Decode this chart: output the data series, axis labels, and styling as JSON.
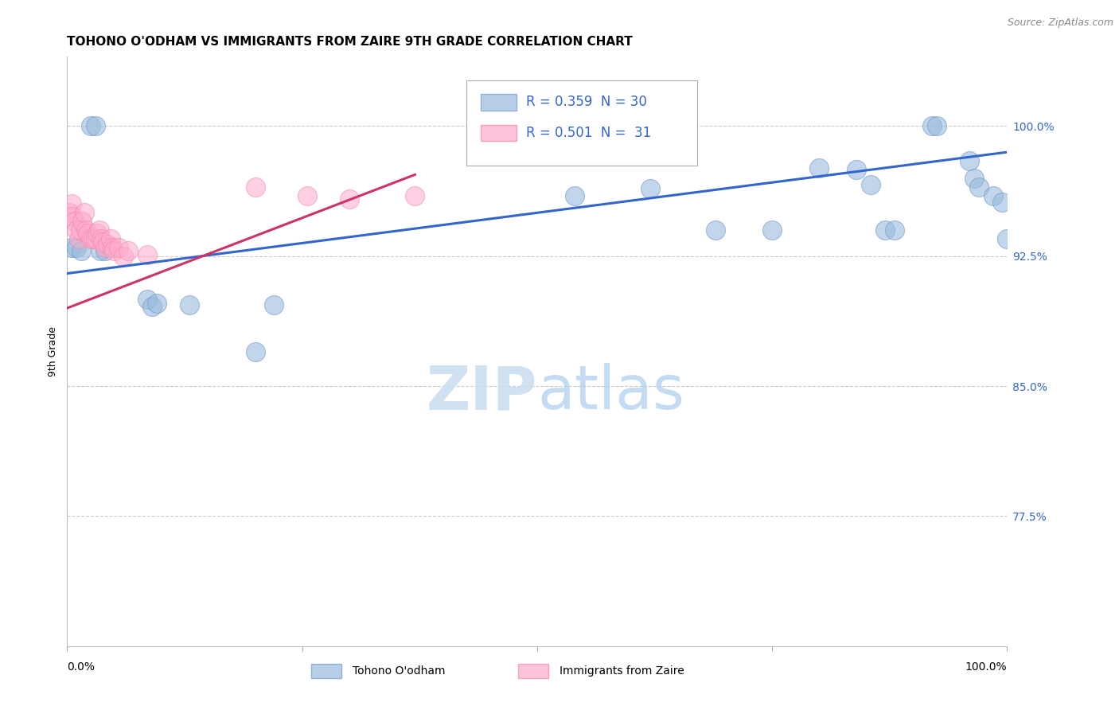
{
  "title": "TOHONO O'ODHAM VS IMMIGRANTS FROM ZAIRE 9TH GRADE CORRELATION CHART",
  "source": "Source: ZipAtlas.com",
  "ylabel": "9th Grade",
  "watermark_zip": "ZIP",
  "watermark_atlas": "atlas",
  "legend_r1": "R = 0.359",
  "legend_n1": "N = 30",
  "legend_r2": "R = 0.501",
  "legend_n2": "N =  31",
  "ytick_labels": [
    "77.5%",
    "85.0%",
    "92.5%",
    "100.0%"
  ],
  "ytick_values": [
    0.775,
    0.85,
    0.925,
    1.0
  ],
  "xlim": [
    0.0,
    1.0
  ],
  "ylim": [
    0.7,
    1.04
  ],
  "blue_scatter_x": [
    0.005,
    0.01,
    0.015,
    0.025,
    0.03,
    0.035,
    0.04,
    0.085,
    0.09,
    0.095,
    0.13,
    0.2,
    0.22,
    0.54,
    0.62,
    0.69,
    0.75,
    0.8,
    0.84,
    0.855,
    0.87,
    0.88,
    0.92,
    0.925,
    0.96,
    0.965,
    0.97,
    0.985,
    0.995,
    1.0
  ],
  "blue_scatter_y": [
    0.93,
    0.93,
    0.928,
    1.0,
    1.0,
    0.928,
    0.928,
    0.9,
    0.896,
    0.898,
    0.897,
    0.87,
    0.897,
    0.96,
    0.964,
    0.94,
    0.94,
    0.976,
    0.975,
    0.966,
    0.94,
    0.94,
    1.0,
    1.0,
    0.98,
    0.97,
    0.965,
    0.96,
    0.956,
    0.935
  ],
  "pink_scatter_x": [
    0.002,
    0.005,
    0.006,
    0.008,
    0.01,
    0.012,
    0.014,
    0.016,
    0.018,
    0.02,
    0.022,
    0.025,
    0.028,
    0.03,
    0.032,
    0.034,
    0.036,
    0.038,
    0.04,
    0.043,
    0.046,
    0.048,
    0.05,
    0.055,
    0.06,
    0.065,
    0.085,
    0.2,
    0.255,
    0.3,
    0.37
  ],
  "pink_scatter_y": [
    0.95,
    0.955,
    0.948,
    0.945,
    0.94,
    0.935,
    0.94,
    0.945,
    0.95,
    0.94,
    0.938,
    0.935,
    0.935,
    0.935,
    0.938,
    0.94,
    0.935,
    0.933,
    0.93,
    0.932,
    0.935,
    0.93,
    0.928,
    0.93,
    0.925,
    0.928,
    0.926,
    0.965,
    0.96,
    0.958,
    0.96
  ],
  "blue_line_x": [
    0.0,
    1.0
  ],
  "blue_line_y": [
    0.915,
    0.985
  ],
  "pink_line_x": [
    0.0,
    0.37
  ],
  "pink_line_y": [
    0.895,
    0.972
  ],
  "blue_color": "#99bbdd",
  "blue_edge_color": "#7799cc",
  "pink_color": "#ffaacc",
  "pink_edge_color": "#ee88aa",
  "blue_line_color": "#3366cc",
  "pink_line_color": "#cc3366",
  "grid_color": "#cccccc",
  "background_color": "#ffffff",
  "title_fontsize": 11,
  "axis_label_fontsize": 9,
  "tick_label_fontsize": 10,
  "legend_fontsize": 12,
  "source_fontsize": 9,
  "bottom_legend_label1": "Tohono O'odham",
  "bottom_legend_label2": "Immigrants from Zaire"
}
